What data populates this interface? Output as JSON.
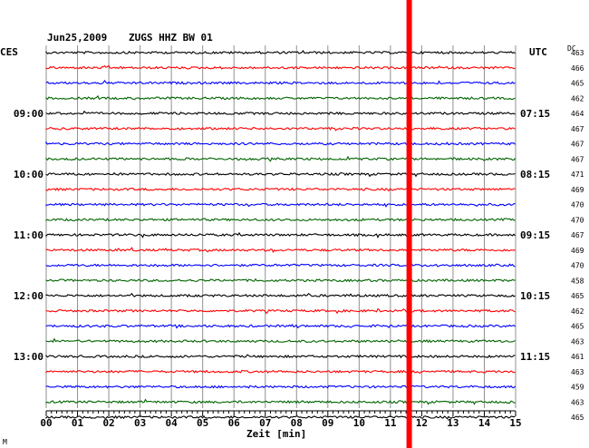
{
  "chart_data": {
    "type": "line",
    "header": {
      "date": "Jun25,2009",
      "station": "ZUGS HHZ BW 01"
    },
    "left_label": "CES",
    "right_label": "UTC",
    "dc_label": "DC",
    "xlabel": "Zeit [min]",
    "xlim": [
      0,
      15
    ],
    "x_ticks": [
      "00",
      "01",
      "02",
      "03",
      "04",
      "05",
      "06",
      "07",
      "08",
      "09",
      "10",
      "11",
      "12",
      "13",
      "14",
      "15"
    ],
    "left_time_labels": [
      {
        "row": 4,
        "label": "09:00"
      },
      {
        "row": 8,
        "label": "10:00"
      },
      {
        "row": 12,
        "label": "11:00"
      },
      {
        "row": 16,
        "label": "12:00"
      },
      {
        "row": 20,
        "label": "13:00"
      }
    ],
    "right_time_labels": [
      {
        "row": 4,
        "label": "07:15"
      },
      {
        "row": 8,
        "label": "08:15"
      },
      {
        "row": 12,
        "label": "09:15"
      },
      {
        "row": 16,
        "label": "10:15"
      },
      {
        "row": 20,
        "label": "11:15"
      }
    ],
    "trace_colors": [
      "#000000",
      "#ff0000",
      "#0000ff",
      "#006400"
    ],
    "dc_values": [
      "463",
      "466",
      "465",
      "462",
      "464",
      "467",
      "467",
      "467",
      "471",
      "469",
      "470",
      "470",
      "467",
      "469",
      "470",
      "458",
      "465",
      "462",
      "465",
      "463",
      "461",
      "463",
      "459",
      "463",
      "465"
    ],
    "event_marker": {
      "minute": 11.6,
      "color": "#ff0000"
    },
    "footer_mark": "M"
  }
}
